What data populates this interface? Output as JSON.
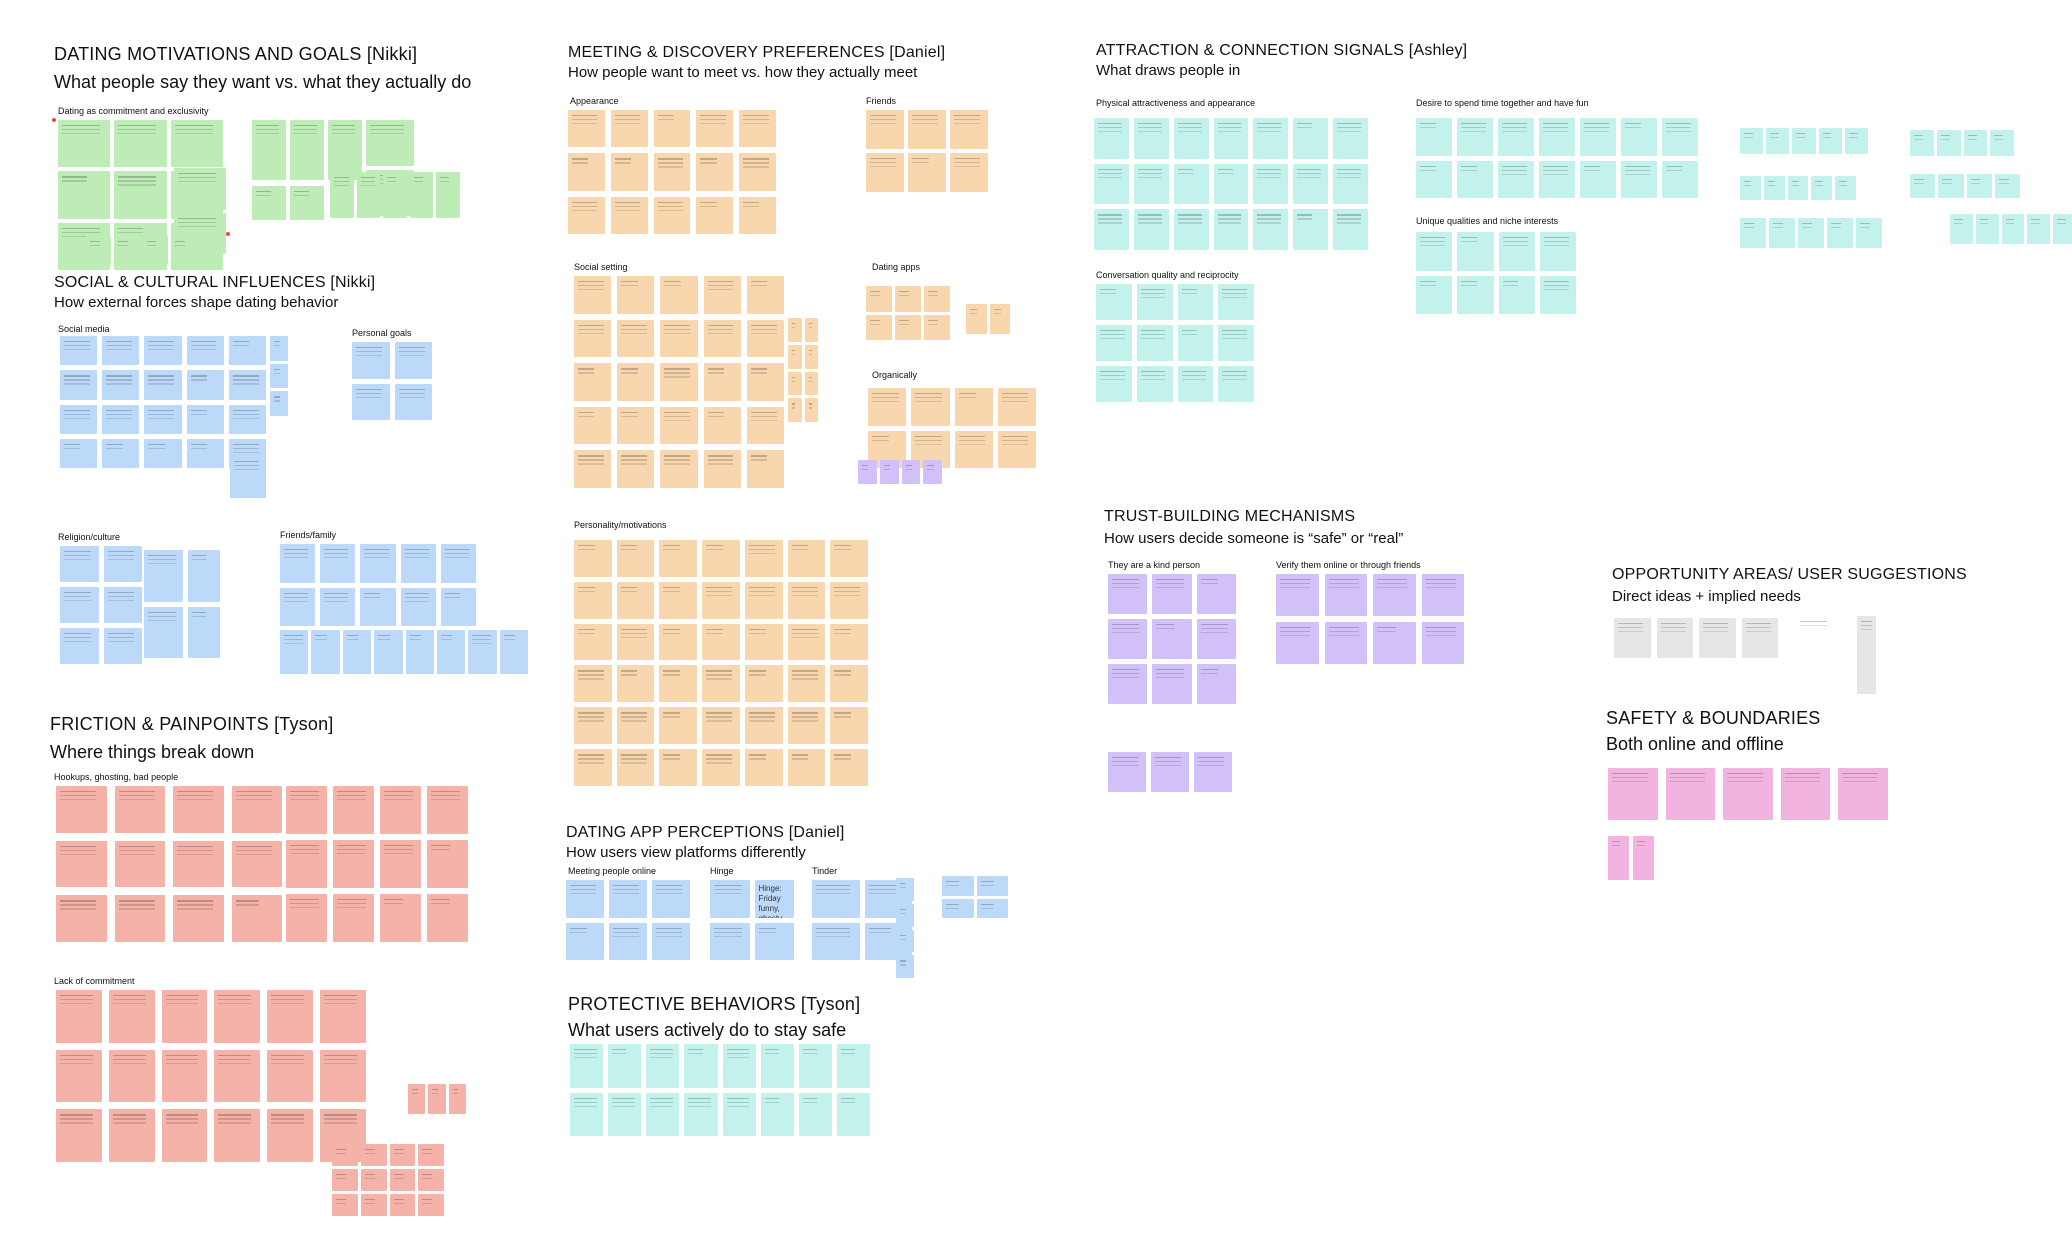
{
  "board": {
    "sections": {
      "motivations": {
        "title": "DATING MOTIVATIONS AND GOALS [Nikki]",
        "subtitle": "What people say they want vs. what they actually do"
      },
      "social": {
        "title": "SOCIAL & CULTURAL INFLUENCES [Nikki]",
        "subtitle": "How external forces shape dating behavior"
      },
      "friction": {
        "title": "FRICTION & PAINPOINTS [Tyson]",
        "subtitle": "Where things break down"
      },
      "meeting": {
        "title": "MEETING & DISCOVERY PREFERENCES [Daniel]",
        "subtitle": "How people want to meet vs. how they actually meet"
      },
      "app": {
        "title": "DATING APP PERCEPTIONS [Daniel]",
        "subtitle": "How users view platforms differently"
      },
      "protective": {
        "title": "PROTECTIVE BEHAVIORS [Tyson]",
        "subtitle": "What users actively do to stay safe"
      },
      "attraction": {
        "title": "ATTRACTION & CONNECTION SIGNALS [Ashley]",
        "subtitle": "What draws people in"
      },
      "trust": {
        "title": "TRUST-BUILDING MECHANISMS",
        "subtitle": "How users decide someone is “safe” or “real”"
      },
      "opportunity": {
        "title": "OPPORTUNITY AREAS/ USER SUGGESTIONS",
        "subtitle": "Direct ideas + implied needs"
      },
      "safety": {
        "title": "SAFETY & BOUNDARIES",
        "subtitle": "Both online and offline"
      }
    },
    "clusters": {
      "commitment": "Dating as commitment and exclusivity",
      "social_media": "Social media",
      "personal_goals": "Personal goals",
      "religion": "Religion/culture",
      "friends_family": "Friends/family",
      "hookups": "Hookups, ghosting, bad people",
      "lack_commitment": "Lack of commitment",
      "appearance": "Appearance",
      "friends": "Friends",
      "social_setting": "Social setting",
      "dating_apps": "Dating apps",
      "organically": "Organically",
      "personality": "Personality/motivations",
      "meeting_online": "Meeting people online",
      "hinge": "Hinge",
      "tinder": "Tinder",
      "physical": "Physical attractiveness and appearance",
      "spend_time": "Desire to spend time together and have fun",
      "conversation": "Conversation quality and reciprocity",
      "unique": "Unique qualities and niche interests",
      "kind_person": "They are a kind person",
      "verify": "Verify them online or through friends"
    },
    "hinge_quote": "Hinge: Friday funny, ghosty."
  }
}
